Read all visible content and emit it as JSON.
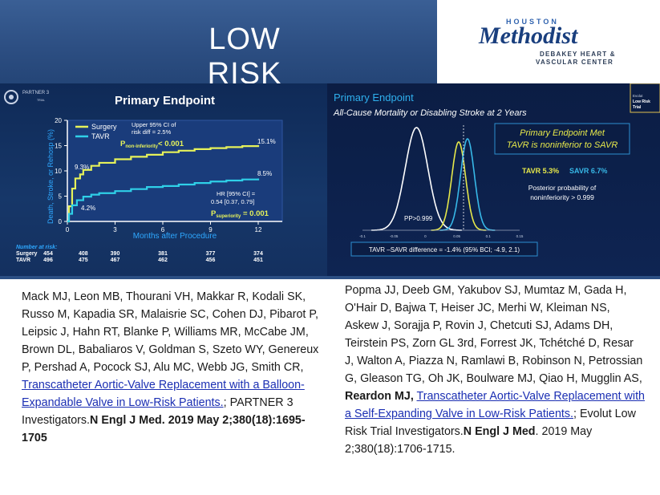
{
  "header": {
    "title": "LOW RISK",
    "logo": {
      "top": "HOUSTON",
      "name": "Methodist",
      "line1": "DEBAKEY HEART &",
      "line2": "VASCULAR CENTER"
    }
  },
  "left_panel": {
    "brand": "PARTNER 3",
    "brand_sub": "TRIAL",
    "heading": "Primary Endpoint",
    "chart_data": {
      "type": "line",
      "xlabel": "Months after Procedure",
      "ylabel": "Death, Stroke, or Rehosp (%)",
      "xlim": [
        0,
        12
      ],
      "ylim": [
        0,
        20
      ],
      "xticks": [
        "0",
        "3",
        "6",
        "9",
        "12"
      ],
      "yticks": [
        "0",
        "5",
        "10",
        "15",
        "20"
      ],
      "series": [
        {
          "name": "Surgery",
          "color": "#e6f25a",
          "x": [
            0,
            0.1,
            0.3,
            0.5,
            0.8,
            1.0,
            1.5,
            2,
            3,
            4,
            5,
            6,
            7,
            8,
            9,
            10,
            11,
            12
          ],
          "y": [
            0,
            3.0,
            6.5,
            8.5,
            9.3,
            10.2,
            11.0,
            11.6,
            12.3,
            12.8,
            13.2,
            13.7,
            14.0,
            14.3,
            14.5,
            14.7,
            14.9,
            15.1
          ]
        },
        {
          "name": "TAVR",
          "color": "#2fd0e8",
          "x": [
            0,
            0.1,
            0.3,
            0.6,
            1.0,
            1.5,
            2,
            3,
            4,
            5,
            6,
            7,
            8,
            9,
            10,
            11,
            12
          ],
          "y": [
            0,
            1.5,
            3.2,
            4.2,
            4.9,
            5.3,
            5.6,
            6.0,
            6.4,
            6.8,
            7.0,
            7.3,
            7.6,
            7.9,
            8.1,
            8.3,
            8.5
          ]
        }
      ],
      "data_labels": {
        "surgery_end": "15.1%",
        "tavr_end": "8.5%",
        "surgery_early": "9.3%",
        "tavr_early": "4.2%"
      },
      "annotations": {
        "upper_ci_line1": "Upper 95% CI of",
        "upper_ci_line2": "risk diff = 2.5%",
        "p_noninf_prefix": "P",
        "p_noninf_sub": "non-inferiority",
        "p_noninf_value": "< 0.001",
        "hr_line1": "HR [95% CI] =",
        "hr_line2": "0.54 [0.37, 0.79]",
        "p_sup_prefix": "P",
        "p_sup_sub": "superiority",
        "p_sup_value": " = 0.001"
      }
    },
    "at_risk": {
      "title": "Number at risk:",
      "rows": [
        {
          "label": "Surgery",
          "values": [
            "454",
            "408",
            "390",
            "381",
            "377",
            "374"
          ]
        },
        {
          "label": "TAVR",
          "values": [
            "496",
            "475",
            "467",
            "462",
            "456",
            "451"
          ]
        }
      ]
    }
  },
  "right_panel": {
    "heading": "Primary Endpoint",
    "subheading": "All-Cause Mortality or Disabling Stroke at 2 Years",
    "trial_badge": {
      "line1": "Evolut",
      "line2": "Low Risk",
      "line3": "Trial"
    },
    "result_box": {
      "line1": "Primary Endpoint Met",
      "line2": "TAVR is noninferior to SAVR"
    },
    "tavr_label": "TAVR 5.3%",
    "savr_label": "SAVR 6.7%",
    "posterior_line1": "Posterior probability of",
    "posterior_line2": "noninferiority > 0.999",
    "pp_label": "PP>0.999",
    "xticks": [
      "-0.1",
      "-0.05",
      "0",
      "0.05",
      "0.1",
      "0.15"
    ],
    "difference_label": "TAVR –SAVR difference = -1.4% (95% BCI; -4.9, 2.1)",
    "chart_data": {
      "type": "area",
      "x_range": [
        -0.1,
        0.15
      ],
      "series": [
        {
          "name": "difference",
          "color": "#ffffff",
          "mean": -0.014
        },
        {
          "name": "TAVR",
          "color": "#e6e84a",
          "mean": 0.053
        },
        {
          "name": "SAVR",
          "color": "#37b8e8",
          "mean": 0.067
        }
      ],
      "noninferiority_margin": 0.06
    }
  },
  "references": {
    "left": {
      "authors": "Mack MJ, Leon MB, Thourani VH, Makkar R, Kodali SK, Russo M, Kapadia SR, Malaisrie SC, Cohen DJ, Pibarot P, Leipsic J, Hahn RT, Blanke P, Williams MR, McCabe JM, Brown DL, Babaliaros V, Goldman S, Szeto WY, Genereux P, Pershad A, Pocock SJ, Alu MC, Webb JG, Smith CR, ",
      "link": "Transcatheter Aortic-Valve Replacement with a Balloon-Expandable Valve in Low-Risk Patients.",
      "middle": "; PARTNER 3 Investigators.",
      "journal": "N Engl J Med. 2019 May 2;380(18):1695-1705"
    },
    "right": {
      "authors": "Popma JJ, Deeb GM, Yakubov SJ, Mumtaz M, Gada H, O'Hair D, Bajwa T, Heiser JC, Merhi W, Kleiman NS, Askew J, Sorajja P, Rovin J, Chetcuti SJ, Adams DH, Teirstein PS, Zorn GL 3rd, Forrest JK, Tchétché D, Resar J, Walton A, Piazza N, Ramlawi B, Robinson N, Petrossian G, Gleason TG, Oh JK, Boulware MJ, Qiao H, Mugglin AS, ",
      "bold_author": "Reardon MJ,",
      "space": " ",
      "link": "Transcatheter Aortic-Valve Replacement with a Self-Expanding Valve in Low-Risk Patients.",
      "middle": "; Evolut Low Risk Trial Investigators.",
      "journal": "N Engl J Med",
      "tail": ". 2019 May 2;380(18):1706-1715."
    }
  }
}
